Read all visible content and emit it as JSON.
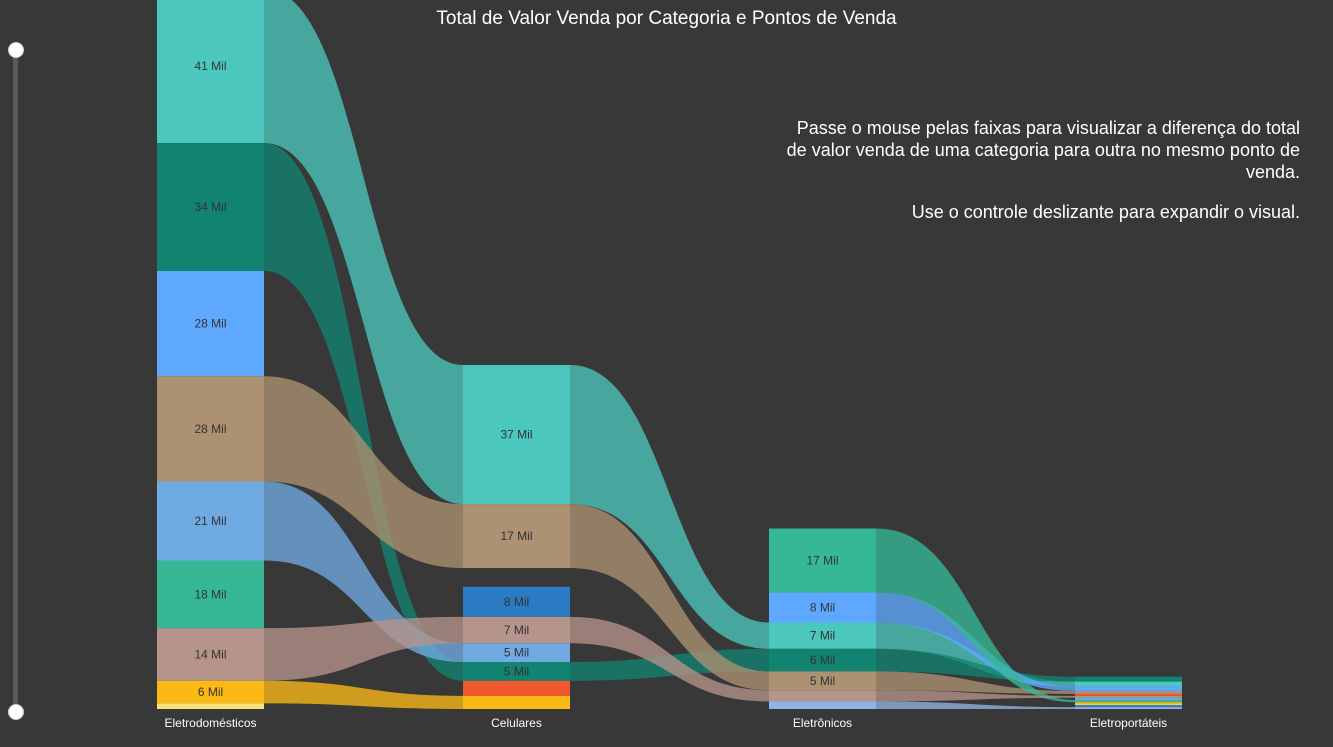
{
  "page": {
    "title": "Total de Valor Venda por Categoria e Pontos de Venda",
    "instructions": [
      "Passe o mouse pelas faixas para visualizar a diferença do total de valor venda de uma categoria para outra no mesmo ponto de venda.",
      "Use o controle deslizante para expandir o visual."
    ]
  },
  "colors": {
    "background": "#383838",
    "text": "#ffffff",
    "label": "#333333"
  },
  "chart_data": {
    "type": "sankey",
    "title": "Total de Valor Venda por Categoria e Pontos de Venda",
    "value_unit": "Mil",
    "categories": [
      "Eletrodomésticos",
      "Celulares",
      "Eletrônicos",
      "Eletroportáteis"
    ],
    "series": [
      {
        "color": "#4cc7bd",
        "values": [
          41,
          37,
          7,
          1.3
        ]
      },
      {
        "color": "#118370",
        "values": [
          34,
          5,
          6,
          1.3
        ]
      },
      {
        "color": "#5ea9ff",
        "values": [
          28,
          0,
          8,
          1.2
        ]
      },
      {
        "color": "#ac9172",
        "values": [
          28,
          17,
          5,
          0.8
        ]
      },
      {
        "color": "#70aae2",
        "values": [
          21,
          5,
          0,
          0.6
        ]
      },
      {
        "color": "#36b896",
        "values": [
          18,
          0,
          17,
          0.6
        ]
      },
      {
        "color": "#b5948b",
        "values": [
          14,
          7,
          3,
          0.5
        ]
      },
      {
        "color": "#fbb916",
        "values": [
          6,
          3.5,
          0,
          0.5
        ]
      },
      {
        "color": "#f5e07a",
        "values": [
          1.5,
          0,
          0,
          0.3
        ]
      },
      {
        "color": "#f0592e",
        "values": [
          0,
          4,
          0,
          0.5
        ]
      },
      {
        "color": "#2b7bc4",
        "values": [
          0,
          8,
          0,
          0.5
        ]
      },
      {
        "color": "#8fb4e3",
        "values": [
          0,
          0,
          2,
          0.5
        ]
      }
    ],
    "node_labels": [
      [
        "41 Mil",
        "34 Mil",
        "28 Mil",
        "28 Mil",
        "21 Mil",
        "18 Mil",
        "14 Mil",
        "6 Mil",
        "",
        "",
        "",
        ""
      ],
      [
        "37 Mil",
        "5 Mil",
        "",
        "17 Mil",
        "5 Mil",
        "",
        "7 Mil",
        "",
        "",
        "",
        "8 Mil",
        ""
      ],
      [
        "7 Mil",
        "6 Mil",
        "8 Mil",
        "5 Mil",
        "",
        "17 Mil",
        "",
        "",
        "",
        "",
        "",
        ""
      ],
      [
        "",
        "",
        "",
        "",
        "",
        "",
        "",
        "",
        "",
        "",
        "",
        ""
      ]
    ],
    "node_order": [
      [
        0,
        1,
        2,
        3,
        4,
        5,
        6,
        7,
        8
      ],
      [
        0,
        3,
        4,
        10,
        6,
        4,
        1,
        9,
        7
      ],
      [
        5,
        2,
        0,
        1,
        3,
        6,
        11
      ],
      [
        1,
        0,
        2,
        3,
        9,
        6,
        4,
        5,
        7,
        8,
        10,
        11
      ]
    ],
    "scale": "stacked-bottom-aligned"
  }
}
